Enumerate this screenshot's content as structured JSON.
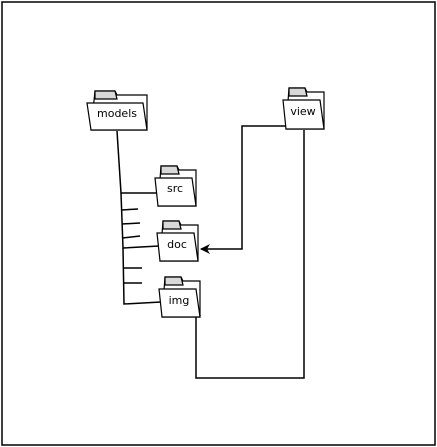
{
  "diagram": {
    "folders": {
      "models": {
        "label": "models"
      },
      "view": {
        "label": "view"
      },
      "src": {
        "label": "src"
      },
      "doc": {
        "label": "doc"
      },
      "img": {
        "label": "img"
      }
    },
    "colors": {
      "stroke": "#000000",
      "folder_fill": "#ffffff",
      "folder_tab_fill": "#d9d9d9",
      "background": "#ffffff"
    },
    "icons": {
      "folder": "folder-icon"
    }
  }
}
